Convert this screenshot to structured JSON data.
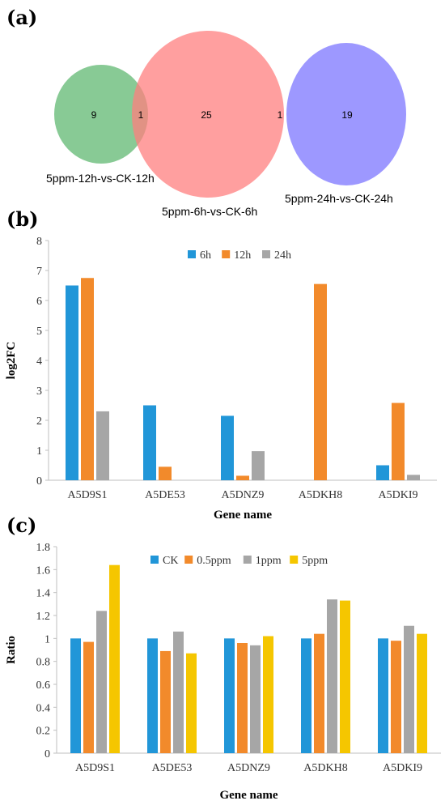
{
  "panels": {
    "a": "(a)",
    "b": "(b)",
    "c": "(c)"
  },
  "venn": {
    "sets": [
      {
        "name": "5ppm-12h-vs-CK-12h",
        "color": "#66bb77"
      },
      {
        "name": "5ppm-6h-vs-CK-6h",
        "color": "#ff7f7f"
      },
      {
        "name": "5ppm-24h-vs-CK-24h",
        "color": "#8c86ff"
      }
    ],
    "counts": {
      "only_12h": "9",
      "12h_and_6h": "1",
      "only_6h": "25",
      "6h_and_24h": "1",
      "only_24h": "19"
    }
  },
  "chart_data": [
    {
      "type": "bar",
      "panel": "b",
      "categories": [
        "A5D9S1",
        "A5DE53",
        "A5DNZ9",
        "A5DKH8",
        "A5DKI9"
      ],
      "series": [
        {
          "name": "6h",
          "color": "#2196d8",
          "values": [
            6.5,
            2.5,
            2.15,
            0,
            0.5
          ]
        },
        {
          "name": "12h",
          "color": "#f28a2b",
          "values": [
            6.75,
            0.45,
            0.15,
            6.55,
            2.58
          ]
        },
        {
          "name": "24h",
          "color": "#a6a6a6",
          "values": [
            2.3,
            0,
            0.97,
            0,
            0.18
          ]
        }
      ],
      "xlabel": "Gene name",
      "ylabel": "log2FC",
      "ylim": [
        0,
        8
      ],
      "yticks": [
        "0",
        "1",
        "2",
        "3",
        "4",
        "5",
        "6",
        "7",
        "8"
      ],
      "legend": "top-center",
      "grid": false
    },
    {
      "type": "bar",
      "panel": "c",
      "categories": [
        "A5D9S1",
        "A5DE53",
        "A5DNZ9",
        "A5DKH8",
        "A5DKI9"
      ],
      "series": [
        {
          "name": "CK",
          "color": "#2196d8",
          "values": [
            1.0,
            1.0,
            1.0,
            1.0,
            1.0
          ]
        },
        {
          "name": "0.5ppm",
          "color": "#f28a2b",
          "values": [
            0.97,
            0.89,
            0.96,
            1.04,
            0.98
          ]
        },
        {
          "name": "1ppm",
          "color": "#a6a6a6",
          "values": [
            1.24,
            1.06,
            0.94,
            1.34,
            1.11
          ]
        },
        {
          "name": "5ppm",
          "color": "#f5c600",
          "values": [
            1.64,
            0.87,
            1.02,
            1.33,
            1.04
          ]
        }
      ],
      "xlabel": "Gene name",
      "ylabel": "Ratio",
      "ylim": [
        0,
        1.8
      ],
      "yticks": [
        "0",
        "0.2",
        "0.4",
        "0.6",
        "0.8",
        "1",
        "1.2",
        "1.4",
        "1.6",
        "1.8"
      ],
      "legend": "top-center",
      "grid": false
    }
  ]
}
